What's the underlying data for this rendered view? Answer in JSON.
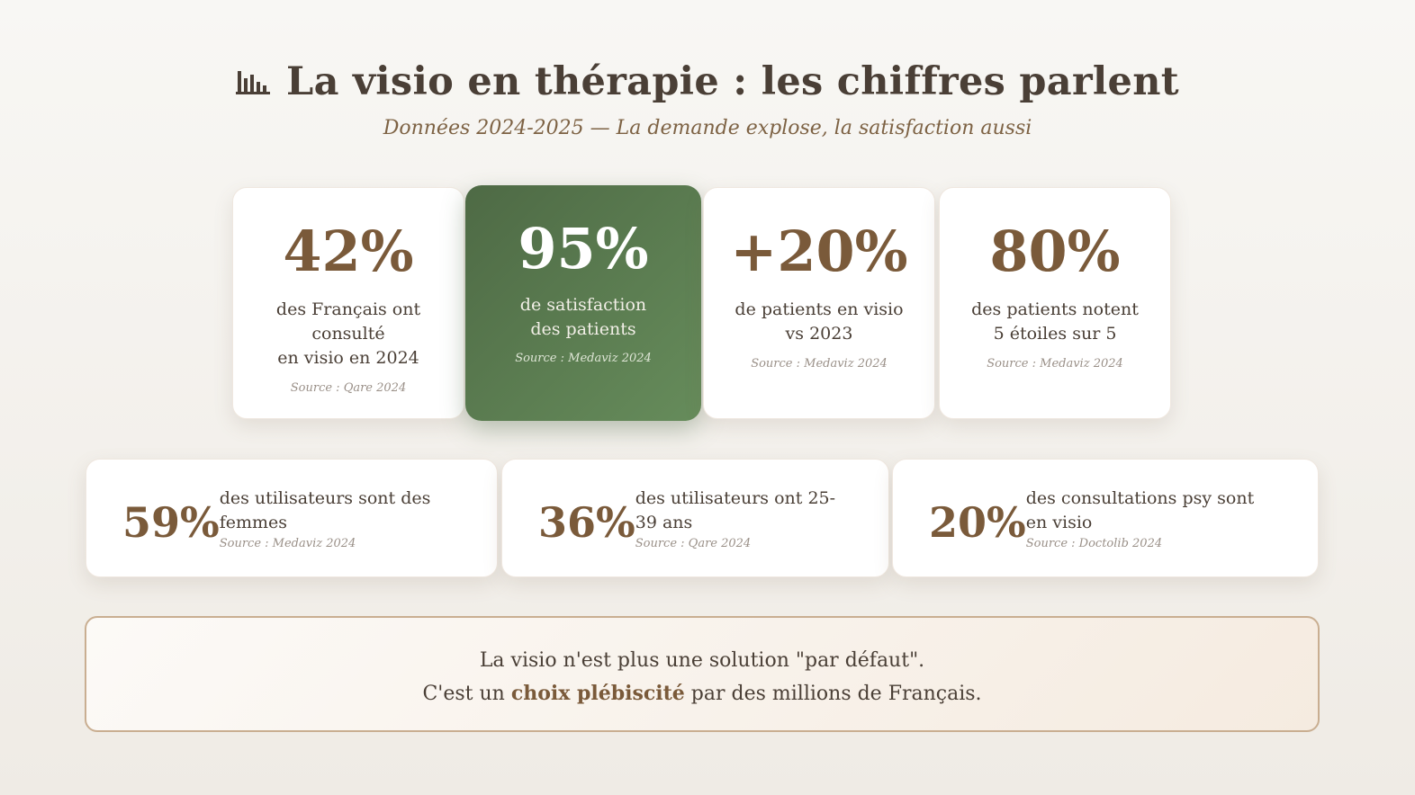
{
  "header": {
    "icon": "bar-chart-icon",
    "title": "La visio en thérapie : les chiffres parlent",
    "subtitle": "Données 2024-2025 — La demande explose, la satisfaction aussi"
  },
  "stats_top": [
    {
      "value": "42%",
      "desc_lines": [
        "des Français ont",
        "consulté",
        "en visio en 2024"
      ],
      "source": "Source : Qare 2024"
    },
    {
      "value": "95%",
      "desc_lines": [
        "de satisfaction",
        "des patients"
      ],
      "source": "Source : Medaviz 2024"
    },
    {
      "value": "+20%",
      "desc_lines": [
        "de patients en visio",
        "vs 2023"
      ],
      "source": "Source : Medaviz 2024"
    },
    {
      "value": "80%",
      "desc_lines": [
        "des patients notent",
        "5 étoiles sur 5"
      ],
      "source": "Source : Medaviz 2024"
    }
  ],
  "stats_bottom": [
    {
      "value": "59%",
      "desc_lines": [
        "des utilisateurs sont des",
        "femmes"
      ],
      "source": "Source : Medaviz 2024"
    },
    {
      "value": "36%",
      "desc_lines": [
        "des utilisateurs ont 25-",
        "39 ans"
      ],
      "source": "Source : Qare 2024"
    },
    {
      "value": "20%",
      "desc_lines": [
        "des consultations psy sont",
        "en visio"
      ],
      "source": "Source : Doctolib 2024"
    }
  ],
  "conclusion": {
    "line1": "La visio n'est plus une solution \"par défaut\".",
    "line2_before": "C'est un ",
    "line2_highlight": "choix plébiscité",
    "line2_after": " par des millions de Français."
  },
  "colors": {
    "accent_brown": "#7a5a3a",
    "featured_green": "#5b7a50",
    "text_dark": "#4a3f36"
  }
}
